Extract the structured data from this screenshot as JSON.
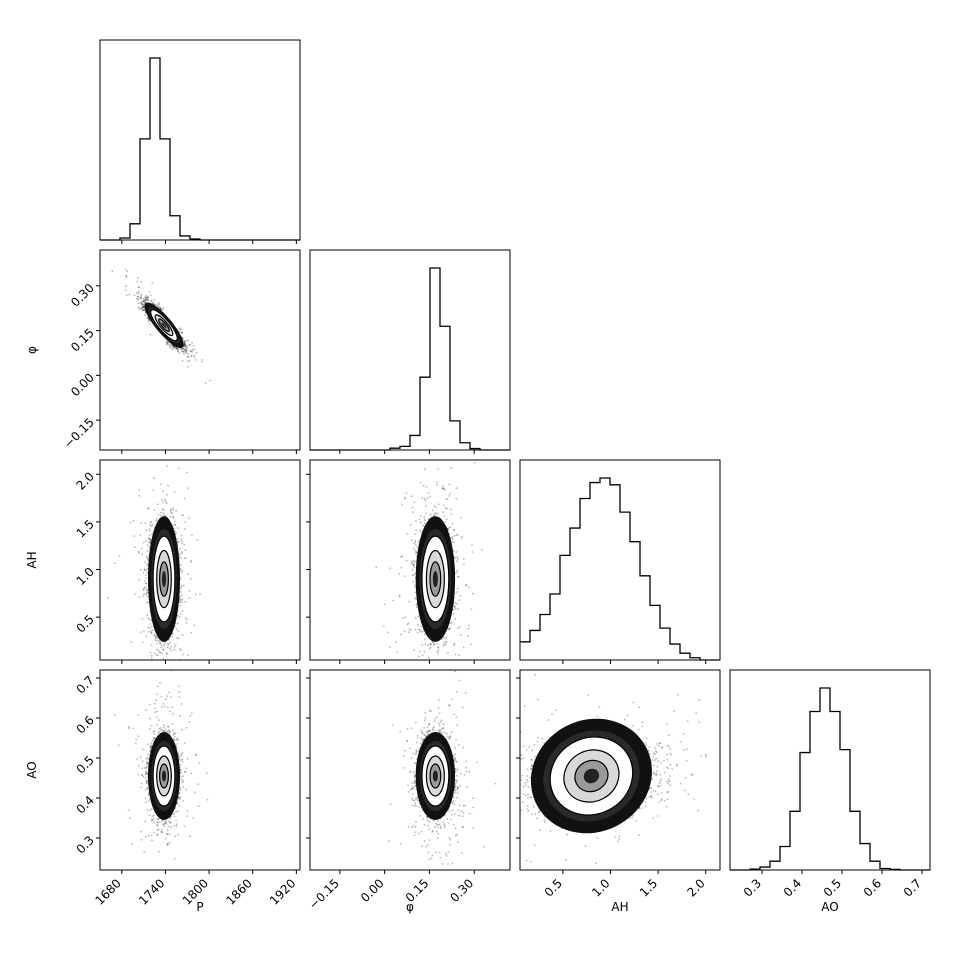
{
  "chart_data": {
    "type": "corner",
    "variables": [
      {
        "name": "P",
        "label": "P",
        "range": [
          1650,
          1925
        ],
        "ticks": [
          1680,
          1740,
          1800,
          1860,
          1920
        ],
        "tick_labels": [
          "1680",
          "1740",
          "1800",
          "1860",
          "1920"
        ]
      },
      {
        "name": "phi",
        "label": "φ",
        "range": [
          -0.25,
          0.42
        ],
        "ticks": [
          -0.15,
          0.0,
          0.15,
          0.3
        ],
        "tick_labels": [
          "−0.15",
          "0.00",
          "0.15",
          "0.30"
        ]
      },
      {
        "name": "AH",
        "label": "AH",
        "range": [
          0.05,
          2.15
        ],
        "ticks": [
          0.5,
          1.0,
          1.5,
          2.0
        ],
        "tick_labels": [
          "0.5",
          "1.0",
          "1.5",
          "2.0"
        ]
      },
      {
        "name": "AO",
        "label": "AO",
        "range": [
          0.22,
          0.72
        ],
        "ticks": [
          0.3,
          0.4,
          0.5,
          0.6,
          0.7
        ],
        "tick_labels": [
          "0.3",
          "0.4",
          "0.5",
          "0.6",
          "0.7"
        ]
      }
    ],
    "histograms": [
      {
        "variable": "P",
        "edges": [
          1650,
          1663.75,
          1677.5,
          1691.25,
          1705,
          1718.75,
          1732.5,
          1746.25,
          1760,
          1773.75,
          1787.5,
          1801.25,
          1815,
          1828.75,
          1842.5,
          1856.25,
          1870,
          1883.75,
          1897.5,
          1911.25,
          1925
        ],
        "counts": [
          0,
          0,
          1,
          8,
          50,
          90,
          50,
          12,
          2,
          0.5,
          0,
          0,
          0,
          0,
          0,
          0,
          0,
          0,
          0,
          0
        ]
      },
      {
        "variable": "phi",
        "edges": [
          -0.25,
          -0.2165,
          -0.183,
          -0.1495,
          -0.116,
          -0.0825,
          -0.049,
          -0.0155,
          0.018,
          0.0515,
          0.085,
          0.1185,
          0.152,
          0.1855,
          0.219,
          0.2525,
          0.286,
          0.3195,
          0.353,
          0.3865,
          0.42
        ],
        "counts": [
          0,
          0,
          0,
          0,
          0,
          0,
          0,
          0,
          0.5,
          1,
          4,
          20,
          50,
          34,
          8,
          2,
          0.4,
          0,
          0,
          0
        ]
      },
      {
        "variable": "AH",
        "edges": [
          0.05,
          0.155,
          0.26,
          0.365,
          0.47,
          0.575,
          0.68,
          0.785,
          0.89,
          0.995,
          1.1,
          1.205,
          1.31,
          1.415,
          1.52,
          1.625,
          1.73,
          1.835,
          1.94,
          2.045,
          2.15
        ],
        "counts": [
          8,
          13,
          20,
          29,
          46,
          58,
          71,
          78,
          80,
          77,
          65,
          52,
          37,
          24,
          14,
          7,
          3,
          1,
          0,
          0
        ]
      },
      {
        "variable": "AO",
        "edges": [
          0.22,
          0.245,
          0.27,
          0.295,
          0.32,
          0.345,
          0.37,
          0.395,
          0.42,
          0.445,
          0.47,
          0.495,
          0.52,
          0.545,
          0.57,
          0.595,
          0.62,
          0.645,
          0.67,
          0.695,
          0.72
        ],
        "counts": [
          0,
          0,
          0.3,
          1,
          3,
          8,
          20,
          40,
          54,
          62,
          54,
          41,
          20,
          9,
          3,
          0.5,
          0.2,
          0,
          0,
          0
        ]
      }
    ],
    "pairs": [
      {
        "x": "P",
        "y": "phi",
        "center": [
          1738,
          0.168
        ],
        "sigma": [
          12,
          0.035
        ],
        "correlation": -0.85
      },
      {
        "x": "P",
        "y": "AH",
        "center": [
          1738,
          0.9
        ],
        "sigma": [
          10,
          0.3
        ],
        "correlation": 0.0
      },
      {
        "x": "phi",
        "y": "AH",
        "center": [
          0.17,
          0.9
        ],
        "sigma": [
          0.03,
          0.3
        ],
        "correlation": 0.0
      },
      {
        "x": "P",
        "y": "AO",
        "center": [
          1738,
          0.455
        ],
        "sigma": [
          10,
          0.05
        ],
        "correlation": 0.0
      },
      {
        "x": "phi",
        "y": "AO",
        "center": [
          0.17,
          0.455
        ],
        "sigma": [
          0.03,
          0.05
        ],
        "correlation": 0.0
      },
      {
        "x": "AH",
        "y": "AO",
        "center": [
          0.8,
          0.455
        ],
        "sigma": [
          0.35,
          0.045
        ],
        "correlation": 0.1
      }
    ],
    "contour_levels_sigma": [
      0.5,
      1.0,
      1.5,
      2.0
    ],
    "colors": {
      "line": "#000000",
      "scatter": "#000000",
      "background": "#ffffff"
    }
  }
}
